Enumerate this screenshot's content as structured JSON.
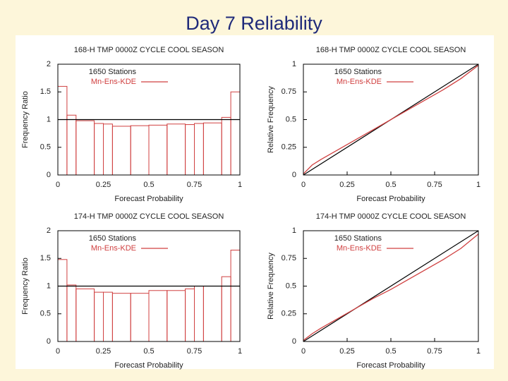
{
  "title": "Day 7 Reliability",
  "chart_data": [
    {
      "type": "histogram",
      "title": "168-H TMP 0000Z CYCLE COOL SEASON",
      "x_label": "Forecast Probability",
      "y_label": "Frequency Ratio",
      "annotation": "1650 Stations",
      "bins": [
        0,
        0.05,
        0.1,
        0.2,
        0.25,
        0.3,
        0.4,
        0.5,
        0.6,
        0.7,
        0.75,
        0.8,
        0.9,
        0.95,
        1
      ],
      "series": [
        {
          "name": "Mn-Ens-KDE",
          "color": "#d04040",
          "values": [
            1.6,
            1.08,
            0.98,
            0.93,
            0.92,
            0.88,
            0.89,
            0.9,
            0.92,
            0.91,
            0.93,
            0.94,
            1.04,
            1.5
          ]
        }
      ],
      "reference_line": 1,
      "xlim": [
        0,
        1
      ],
      "xticks": [
        0,
        0.25,
        0.5,
        0.75,
        1
      ],
      "ylim": [
        0,
        2
      ],
      "yticks": [
        0,
        0.5,
        1,
        1.5,
        2
      ]
    },
    {
      "type": "line",
      "title": "168-H TMP 0000Z CYCLE COOL SEASON",
      "x_label": "Forecast Probability",
      "y_label": "Relative Frequency",
      "annotation": "1650 Stations",
      "reference_diagonal": true,
      "x": [
        0,
        0.05,
        0.1,
        0.2,
        0.3,
        0.4,
        0.5,
        0.6,
        0.7,
        0.8,
        0.9,
        1
      ],
      "series": [
        {
          "name": "Mn-Ens-KDE",
          "color": "#d04040",
          "values": [
            0.01,
            0.09,
            0.14,
            0.23,
            0.32,
            0.41,
            0.5,
            0.59,
            0.68,
            0.77,
            0.87,
            0.99
          ]
        }
      ],
      "xlim": [
        0,
        1
      ],
      "xticks": [
        0,
        0.25,
        0.5,
        0.75,
        1
      ],
      "ylim": [
        0,
        1
      ],
      "yticks": [
        0,
        0.25,
        0.5,
        0.75,
        1
      ]
    },
    {
      "type": "histogram",
      "title": "174-H TMP 0000Z CYCLE COOL SEASON",
      "x_label": "Forecast Probability",
      "y_label": "Frequency Ratio",
      "annotation": "1650 Stations",
      "bins": [
        0,
        0.05,
        0.1,
        0.2,
        0.25,
        0.3,
        0.4,
        0.5,
        0.6,
        0.7,
        0.75,
        0.8,
        0.9,
        0.95,
        1
      ],
      "series": [
        {
          "name": "Mn-Ens-KDE",
          "color": "#d04040",
          "values": [
            1.48,
            1.02,
            0.95,
            0.89,
            0.89,
            0.87,
            0.87,
            0.92,
            0.92,
            0.95,
            1.0,
            1.0,
            1.17,
            1.65
          ]
        }
      ],
      "reference_line": 1,
      "xlim": [
        0,
        1
      ],
      "xticks": [
        0,
        0.25,
        0.5,
        0.75,
        1
      ],
      "ylim": [
        0,
        2
      ],
      "yticks": [
        0,
        0.5,
        1,
        1.5,
        2
      ]
    },
    {
      "type": "line",
      "title": "174-H TMP 0000Z CYCLE COOL SEASON",
      "x_label": "Forecast Probability",
      "y_label": "Relative Frequency",
      "annotation": "1650 Stations",
      "reference_diagonal": true,
      "x": [
        0,
        0.05,
        0.1,
        0.2,
        0.3,
        0.4,
        0.5,
        0.6,
        0.7,
        0.8,
        0.9,
        1
      ],
      "series": [
        {
          "name": "Mn-Ens-KDE",
          "color": "#d04040",
          "values": [
            0.01,
            0.07,
            0.12,
            0.21,
            0.3,
            0.39,
            0.47,
            0.56,
            0.65,
            0.74,
            0.84,
            0.97
          ]
        }
      ],
      "xlim": [
        0,
        1
      ],
      "xticks": [
        0,
        0.25,
        0.5,
        0.75,
        1
      ],
      "ylim": [
        0,
        1
      ],
      "yticks": [
        0,
        0.25,
        0.5,
        0.75,
        1
      ]
    }
  ]
}
